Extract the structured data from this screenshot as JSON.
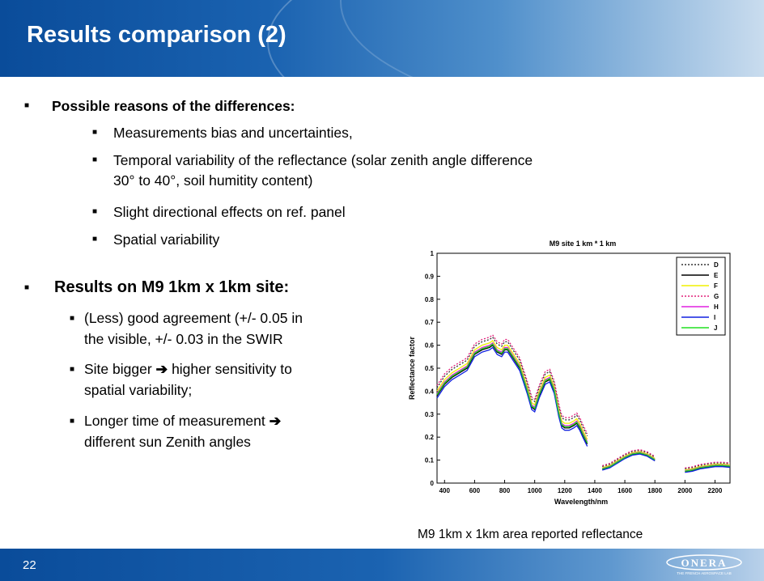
{
  "slide": {
    "title": "Results comparison (2)",
    "page_number": "22",
    "logo_text": "ONERA",
    "logo_subtext": "THE FRENCH AEROSPACE LAB"
  },
  "bullets": {
    "reasons_heading": "Possible reasons of the differences:",
    "reasons": [
      "Measurements bias and uncertainties,",
      "Temporal variability of the reflectance (solar zenith angle difference",
      "30° to 40°, soil humitity content)",
      "Slight directional effects on ref. panel",
      "Spatial variability"
    ],
    "results_heading": "Results on M9 1km x 1km site:",
    "results": [
      "(Less) good agreement (+/- 0.05 in",
      "the visible, +/- 0.03 in the SWIR",
      "Site bigger ",
      " higher sensitivity to",
      "spatial variability;",
      "Longer time of measurement ",
      "different sun Zenith angles"
    ]
  },
  "caption": "M9 1km x 1km area reported  reflectance",
  "chart_data": {
    "type": "line",
    "title": "M9 site 1 km * 1 km",
    "xlabel": "Wavelength/nm",
    "ylabel": "Reflectance factor",
    "xlim": [
      350,
      2300
    ],
    "ylim": [
      0,
      1
    ],
    "x_ticks": [
      "400",
      "600",
      "800",
      "1000",
      "1200",
      "1400",
      "1600",
      "1800",
      "2000",
      "2200"
    ],
    "y_ticks": [
      "0",
      "0.1",
      "0.2",
      "0.3",
      "0.4",
      "0.5",
      "0.6",
      "0.7",
      "0.8",
      "0.9",
      "1"
    ],
    "legend_position": "top-right",
    "segments": [
      {
        "x": [
          350,
          400,
          450,
          500,
          550,
          600,
          650,
          700,
          720,
          750,
          780,
          800,
          820,
          850,
          900,
          950,
          980,
          1000,
          1030,
          1070,
          1100,
          1130,
          1160,
          1180,
          1200,
          1230,
          1260,
          1280,
          1300,
          1320,
          1350
        ],
        "base": [
          0.38,
          0.43,
          0.46,
          0.48,
          0.5,
          0.56,
          0.58,
          0.59,
          0.6,
          0.57,
          0.56,
          0.58,
          0.58,
          0.55,
          0.5,
          0.4,
          0.33,
          0.32,
          0.38,
          0.44,
          0.45,
          0.4,
          0.3,
          0.25,
          0.24,
          0.24,
          0.25,
          0.26,
          0.24,
          0.21,
          0.17
        ]
      },
      {
        "x": [
          1450,
          1500,
          1550,
          1600,
          1650,
          1700,
          1750,
          1800
        ],
        "base": [
          0.06,
          0.07,
          0.09,
          0.11,
          0.125,
          0.13,
          0.12,
          0.1
        ]
      },
      {
        "x": [
          2000,
          2050,
          2100,
          2150,
          2200,
          2250,
          2300
        ],
        "base": [
          0.05,
          0.055,
          0.065,
          0.07,
          0.075,
          0.075,
          0.072
        ]
      }
    ],
    "series": [
      {
        "name": "D",
        "color": "#333333",
        "dash": "2,2",
        "offset": 0.035
      },
      {
        "name": "E",
        "color": "#000000",
        "dash": "",
        "offset": 0.0
      },
      {
        "name": "F",
        "color": "#f0f000",
        "dash": "",
        "offset": 0.02
      },
      {
        "name": "G",
        "color": "#e0207a",
        "dash": "2,2",
        "offset": 0.045
      },
      {
        "name": "H",
        "color": "#e020e0",
        "dash": "",
        "offset": 0.01
      },
      {
        "name": "I",
        "color": "#1020e0",
        "dash": "",
        "offset": -0.01
      },
      {
        "name": "J",
        "color": "#20e020",
        "dash": "",
        "offset": 0.005
      }
    ]
  }
}
